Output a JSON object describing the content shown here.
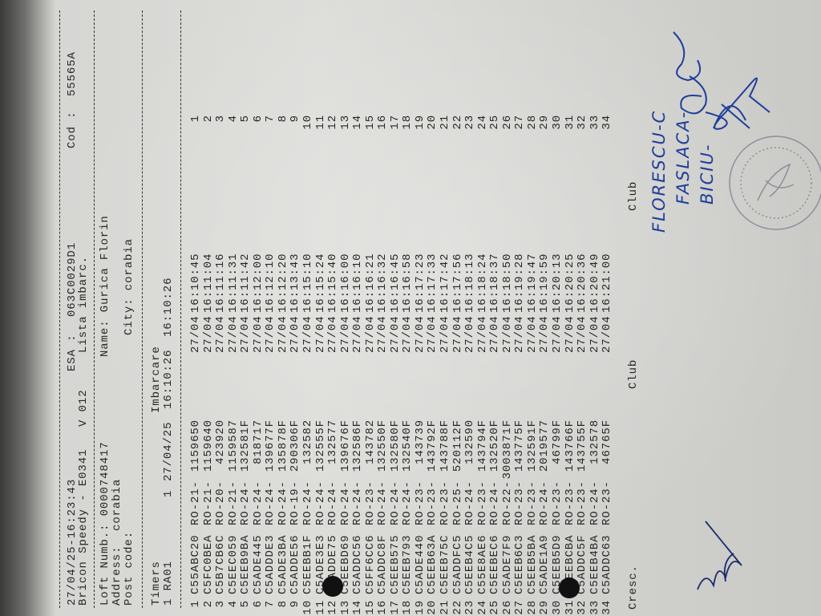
{
  "header": {
    "datetime": "27/04/25-16:23:43",
    "esa_label": "ESA :",
    "esa_value": "063C0029D1",
    "cod_label": "Cod :",
    "cod_value": "55565A",
    "device": "Bricon Speedy - E0341",
    "version": "V 012",
    "doc_title": "Lista imbarc."
  },
  "loft": {
    "loft_number": "Loft Numb.: 0000748417",
    "name": "Name: Gurica Florin",
    "address": "Address:  corabia",
    "post_code": "Post code:",
    "city": "City: corabia"
  },
  "timers": {
    "label": "Timers",
    "imbarcare_label": "Imbarcare",
    "timer_id": "1 RA01",
    "count": "1",
    "date": "27/04/25",
    "time1": "16:10:26",
    "time2": "16:10:26"
  },
  "rows": [
    [
      "1",
      "C55ABC20",
      "RO-21-",
      "1159650",
      "27/04",
      "16:10:45",
      "1"
    ],
    [
      "2",
      "C5FC0BEA",
      "RO-21-",
      "1159640",
      "27/04",
      "16:11:04",
      "2"
    ],
    [
      "3",
      "C5B7CB6C",
      "RO-20-",
      "423920",
      "27/04",
      "16:11:16",
      "3"
    ],
    [
      "4",
      "C5EEC059",
      "RO-21-",
      "1159587",
      "27/04",
      "16:11:31",
      "4"
    ],
    [
      "5",
      "C5EEB9BA",
      "RO-24-",
      "132581F",
      "27/04",
      "16:11:42",
      "5"
    ],
    [
      "6",
      "C5ADE445",
      "RO-24-",
      "818717",
      "27/04",
      "16:12:00",
      "6"
    ],
    [
      "7",
      "C5ADDDE3",
      "RO-24-",
      "139677F",
      "27/04",
      "16:12:10",
      "7"
    ],
    [
      "8",
      "C5ADE3BA",
      "RO-24-",
      "135878F",
      "27/04",
      "16:12:20",
      "8"
    ],
    [
      "9",
      "C5ADDE56",
      "RO-19-",
      "290306F",
      "27/04",
      "16:13:43",
      "9"
    ],
    [
      "10",
      "C5EEBB1F",
      "RO-24-",
      "132582",
      "27/04",
      "16:15:10",
      "10"
    ],
    [
      "11",
      "C5ADE3E3",
      "RO-24-",
      "132555F",
      "27/04",
      "16:15:24",
      "11"
    ],
    [
      "12",
      "C5ADDE75",
      "RO-24-",
      "132577",
      "27/04",
      "16:15:40",
      "12"
    ],
    [
      "13",
      "C5EEBD69",
      "RO-24-",
      "139676F",
      "27/04",
      "16:16:00",
      "13"
    ],
    [
      "14",
      "C5ADDC56",
      "RO-24-",
      "132586F",
      "27/04",
      "16:16:10",
      "14"
    ],
    [
      "15",
      "C5FF6CC6",
      "RO-23-",
      "143782",
      "27/04",
      "16:16:21",
      "15"
    ],
    [
      "16",
      "C5ADDC8F",
      "RO-24-",
      "132550F",
      "27/04",
      "16:16:32",
      "16"
    ],
    [
      "17",
      "C5EEB575",
      "RO-24-",
      "132580F",
      "27/04",
      "16:16:45",
      "17"
    ],
    [
      "18",
      "C5EEB793",
      "RO-24-",
      "132540F",
      "27/04",
      "16:16:58",
      "18"
    ],
    [
      "19",
      "C5ADE440",
      "RO-23-",
      "143739",
      "27/04",
      "16:17:23",
      "19"
    ],
    [
      "20",
      "C5EEB63A",
      "RO-23-",
      "143792F",
      "27/04",
      "16:17:33",
      "20"
    ],
    [
      "21",
      "C5EEB75C",
      "RO-23-",
      "143788F",
      "27/04",
      "16:17:42",
      "21"
    ],
    [
      "22",
      "C5ADDFC5",
      "RO-25-",
      "520112F",
      "27/04",
      "16:17:56",
      "22"
    ],
    [
      "23",
      "C5EEB4C5",
      "RO-24-",
      "132590",
      "27/04",
      "16:18:13",
      "23"
    ],
    [
      "24",
      "C55E8AE6",
      "RO-23-",
      "143794F",
      "27/04",
      "16:18:24",
      "24"
    ],
    [
      "25",
      "C5EEBEC6",
      "RO-24-",
      "132520F",
      "27/04",
      "16:18:37",
      "25"
    ],
    [
      "26",
      "C5ADE7F9",
      "RO-22-",
      "3003871F",
      "27/04",
      "16:18:50",
      "26"
    ],
    [
      "27",
      "C5EEB6C3",
      "RO-23-",
      "143775F",
      "27/04",
      "16:19:28",
      "27"
    ],
    [
      "28",
      "C5EEB5BA",
      "RO-23-",
      "132591F",
      "27/04",
      "16:19:47",
      "28"
    ],
    [
      "29",
      "C5ADE1A9",
      "RO-24-",
      "2019577",
      "27/04",
      "16:19:59",
      "29"
    ],
    [
      "30",
      "C5EEB5D9",
      "RO-23-",
      "46799F",
      "27/04",
      "16:20:13",
      "30"
    ],
    [
      "31",
      "C5EEBCBA",
      "RO-23-",
      "143766F",
      "27/04",
      "16:20:25",
      "31"
    ],
    [
      "32",
      "C5ADDC5F",
      "RO-23-",
      "143755F",
      "27/04",
      "16:20:36",
      "32"
    ],
    [
      "33",
      "C5EEB4BA",
      "RO-24-",
      "132578",
      "27/04",
      "16:20:49",
      "33"
    ],
    [
      "34",
      "C5ADDC63",
      "RO-23-",
      "46765F",
      "27/04",
      "16:21:00",
      "34"
    ]
  ],
  "footer": {
    "cresc_label": "Cresc.",
    "club_label_1": "Club",
    "club_label_2": "Club"
  },
  "handwriting": {
    "line1": "FLORESCU-C",
    "line2": "FASLACA-",
    "line3": "BICIU-"
  },
  "colors": {
    "ink": "#262626",
    "pen": "#1f3e9a",
    "stamp": "#7a7a8a"
  }
}
